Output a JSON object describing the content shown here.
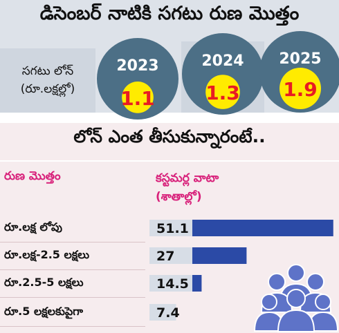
{
  "top_chart": {
    "title": "డిసెంబర్ నాటికి సగటు రుణ మొత్తం",
    "label_line1": "సగటు లోన్",
    "label_line2": "(రూ.లక్షల్లో)"
  },
  "bottom_chart": {
    "title": "లోన్ ఎంత తీసుకున్నారంటే..",
    "col_left": "రుణ మొత్తం",
    "col_right_line1": "కస్టమర్ల వాటా",
    "col_right_line2": "(శాతాల్లో)"
  },
  "colors": {
    "circle": "#4c6f86",
    "yellow": "#ffeb00",
    "value_red": "#e81b23",
    "bar_blue": "#2b4aa6",
    "value_box": "#d7dde6",
    "people_icon": "#5e73c8"
  },
  "icons": [
    "people-group-icon"
  ],
  "chart_data": [
    {
      "type": "bubble",
      "title": "డిసెంబర్ నాటికి సగటు రుణ మొత్తం",
      "ylabel": "సగటు లోన్ (రూ.లక్షల్లో)",
      "categories": [
        "2023",
        "2024",
        "2025"
      ],
      "values": [
        1.1,
        1.3,
        1.9
      ],
      "value_labels": [
        "1.1",
        "1.3",
        "1.9"
      ]
    },
    {
      "type": "bar",
      "orientation": "horizontal",
      "title": "లోన్ ఎంత తీసుకున్నారంటే..",
      "xlabel": "కస్టమర్ల వాటా (శాతాల్లో)",
      "ylabel": "రుణ మొత్తం",
      "categories": [
        "రూ.లక్ష లోపు",
        "రూ.లక్ష-2.5 లక్షలు",
        "రూ.2.5-5 లక్షలు",
        "రూ.5 లక్షలకుపైగా"
      ],
      "values": [
        51.1,
        27,
        14.5,
        7.4
      ],
      "value_labels": [
        "51.1",
        "27",
        "14.5",
        "7.4"
      ]
    }
  ]
}
